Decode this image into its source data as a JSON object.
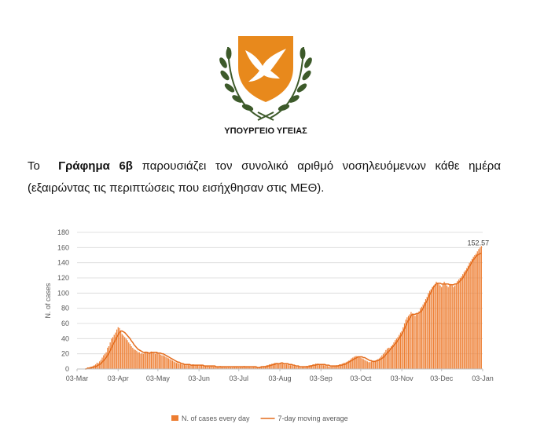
{
  "header": {
    "ministry": "ΥΠΟΥΡΓΕΙΟ ΥΓΕΙΑΣ"
  },
  "paragraph": {
    "before": "Το",
    "bold": "Γράφημα 6β",
    "after": "παρουσιάζει τον συνολικό αριθμό νοσηλευόμενων κάθε ημέρα (εξαιρώντας τις περιπτώσεις που εισήχθησαν στις ΜΕΘ)."
  },
  "chart_data": {
    "type": "bar",
    "ylabel": "N. of cases",
    "legend": "bottom",
    "grid": true,
    "xlim": [
      0,
      306
    ],
    "xticks": [
      {
        "value": 0,
        "label": "03-Mar"
      },
      {
        "value": 31,
        "label": "03-Apr"
      },
      {
        "value": 61,
        "label": "03-May"
      },
      {
        "value": 92,
        "label": "03-Jun"
      },
      {
        "value": 122,
        "label": "03-Jul"
      },
      {
        "value": 153,
        "label": "03-Aug"
      },
      {
        "value": 184,
        "label": "03-Sep"
      },
      {
        "value": 214,
        "label": "03-Oct"
      },
      {
        "value": 245,
        "label": "03-Nov"
      },
      {
        "value": 275,
        "label": "03-Dec"
      },
      {
        "value": 306,
        "label": "03-Jan"
      }
    ],
    "ylim": [
      0,
      180
    ],
    "yticks": [
      0,
      20,
      40,
      60,
      80,
      100,
      120,
      140,
      160,
      180
    ],
    "series": [
      {
        "name": "N. of cases every day",
        "type": "bar",
        "color": "#ED7D31",
        "values": [
          0,
          0,
          0,
          0,
          0,
          0,
          0,
          1,
          2,
          2,
          3,
          3,
          4,
          5,
          6,
          8,
          8,
          10,
          12,
          15,
          18,
          20,
          22,
          28,
          30,
          35,
          40,
          42,
          45,
          48,
          52,
          55,
          54,
          50,
          46,
          44,
          42,
          40,
          38,
          35,
          33,
          30,
          28,
          26,
          25,
          24,
          22,
          22,
          20,
          21,
          20,
          22,
          23,
          22,
          21,
          22,
          23,
          22,
          21,
          20,
          22,
          21,
          20,
          19,
          18,
          18,
          17,
          16,
          15,
          14,
          13,
          12,
          11,
          10,
          9,
          8,
          8,
          7,
          7,
          6,
          6,
          6,
          5,
          6,
          6,
          5,
          5,
          6,
          6,
          5,
          5,
          5,
          4,
          5,
          5,
          4,
          4,
          4,
          4,
          4,
          3,
          4,
          4,
          3,
          4,
          3,
          3,
          3,
          4,
          3,
          3,
          3,
          3,
          2,
          3,
          3,
          2,
          2,
          3,
          3,
          3,
          3,
          2,
          3,
          3,
          3,
          4,
          3,
          3,
          3,
          3,
          2,
          2,
          3,
          3,
          2,
          2,
          2,
          3,
          3,
          3,
          4,
          4,
          5,
          5,
          6,
          6,
          7,
          7,
          8,
          8,
          8,
          7,
          8,
          8,
          7,
          7,
          6,
          6,
          6,
          5,
          5,
          5,
          4,
          4,
          3,
          3,
          3,
          2,
          2,
          3,
          3,
          3,
          4,
          4,
          5,
          5,
          5,
          6,
          6,
          7,
          7,
          7,
          6,
          6,
          6,
          5,
          5,
          4,
          4,
          3,
          3,
          3,
          4,
          4,
          4,
          5,
          5,
          6,
          6,
          7,
          8,
          8,
          9,
          10,
          11,
          12,
          14,
          15,
          16,
          17,
          17,
          16,
          16,
          15,
          14,
          13,
          12,
          11,
          10,
          9,
          9,
          10,
          10,
          11,
          11,
          12,
          13,
          14,
          16,
          18,
          20,
          22,
          25,
          27,
          28,
          28,
          30,
          32,
          35,
          38,
          40,
          42,
          45,
          48,
          50,
          55,
          60,
          65,
          68,
          70,
          72,
          75,
          73,
          72,
          70,
          72,
          74,
          76,
          80,
          82,
          85,
          88,
          92,
          95,
          100,
          103,
          105,
          108,
          110,
          112,
          115,
          113,
          112,
          110,
          108,
          112,
          115,
          113,
          110,
          108,
          110,
          112,
          110,
          108,
          110,
          113,
          116,
          118,
          120,
          122,
          125,
          128,
          130,
          133,
          136,
          140,
          142,
          145,
          148,
          150,
          152,
          155,
          158,
          160,
          162
        ]
      },
      {
        "name": "7-day moving average",
        "type": "line",
        "color": "#E46C1C",
        "values": [
          null,
          null,
          null,
          null,
          null,
          null,
          0,
          0,
          1,
          1,
          1,
          2,
          2,
          3,
          3,
          4,
          5,
          6,
          7,
          9,
          11,
          13,
          15,
          18,
          21,
          24,
          28,
          32,
          35,
          38,
          42,
          45,
          48,
          50,
          50,
          49,
          48,
          46,
          44,
          42,
          40,
          37,
          35,
          32,
          30,
          28,
          26,
          25,
          24,
          23,
          22,
          22,
          22,
          22,
          21,
          21,
          22,
          22,
          22,
          22,
          22,
          21,
          21,
          21,
          20,
          20,
          19,
          18,
          17,
          16,
          15,
          14,
          13,
          12,
          11,
          10,
          9,
          9,
          8,
          7,
          7,
          6,
          6,
          6,
          6,
          6,
          5,
          5,
          5,
          5,
          5,
          5,
          5,
          5,
          5,
          5,
          4,
          4,
          4,
          4,
          4,
          4,
          4,
          4,
          4,
          3,
          3,
          3,
          3,
          3,
          3,
          3,
          3,
          3,
          3,
          3,
          3,
          3,
          3,
          3,
          3,
          3,
          3,
          3,
          3,
          3,
          3,
          3,
          3,
          3,
          3,
          3,
          3,
          3,
          3,
          3,
          2,
          2,
          2,
          3,
          3,
          3,
          3,
          3,
          4,
          4,
          5,
          5,
          6,
          6,
          7,
          7,
          7,
          7,
          8,
          8,
          7,
          7,
          7,
          7,
          6,
          6,
          6,
          5,
          5,
          4,
          4,
          4,
          3,
          3,
          3,
          3,
          3,
          3,
          3,
          3,
          4,
          4,
          5,
          5,
          5,
          6,
          6,
          6,
          6,
          6,
          6,
          6,
          5,
          5,
          5,
          4,
          4,
          4,
          4,
          4,
          4,
          4,
          5,
          5,
          5,
          6,
          6,
          7,
          8,
          9,
          10,
          11,
          12,
          13,
          14,
          15,
          16,
          16,
          16,
          16,
          15,
          15,
          14,
          13,
          12,
          11,
          11,
          10,
          10,
          10,
          11,
          11,
          12,
          13,
          14,
          15,
          17,
          19,
          21,
          23,
          25,
          27,
          29,
          31,
          33,
          35,
          38,
          40,
          43,
          46,
          49,
          53,
          57,
          61,
          64,
          67,
          70,
          72,
          72,
          72,
          73,
          73,
          74,
          75,
          77,
          80,
          83,
          87,
          90,
          94,
          98,
          101,
          105,
          108,
          110,
          112,
          113,
          113,
          113,
          112,
          112,
          112,
          112,
          112,
          112,
          111,
          111,
          111,
          111,
          112,
          112,
          113,
          114,
          116,
          118,
          120,
          123,
          126,
          129,
          132,
          135,
          138,
          141,
          144,
          146,
          148,
          150,
          151,
          152,
          152.57
        ]
      }
    ]
  }
}
